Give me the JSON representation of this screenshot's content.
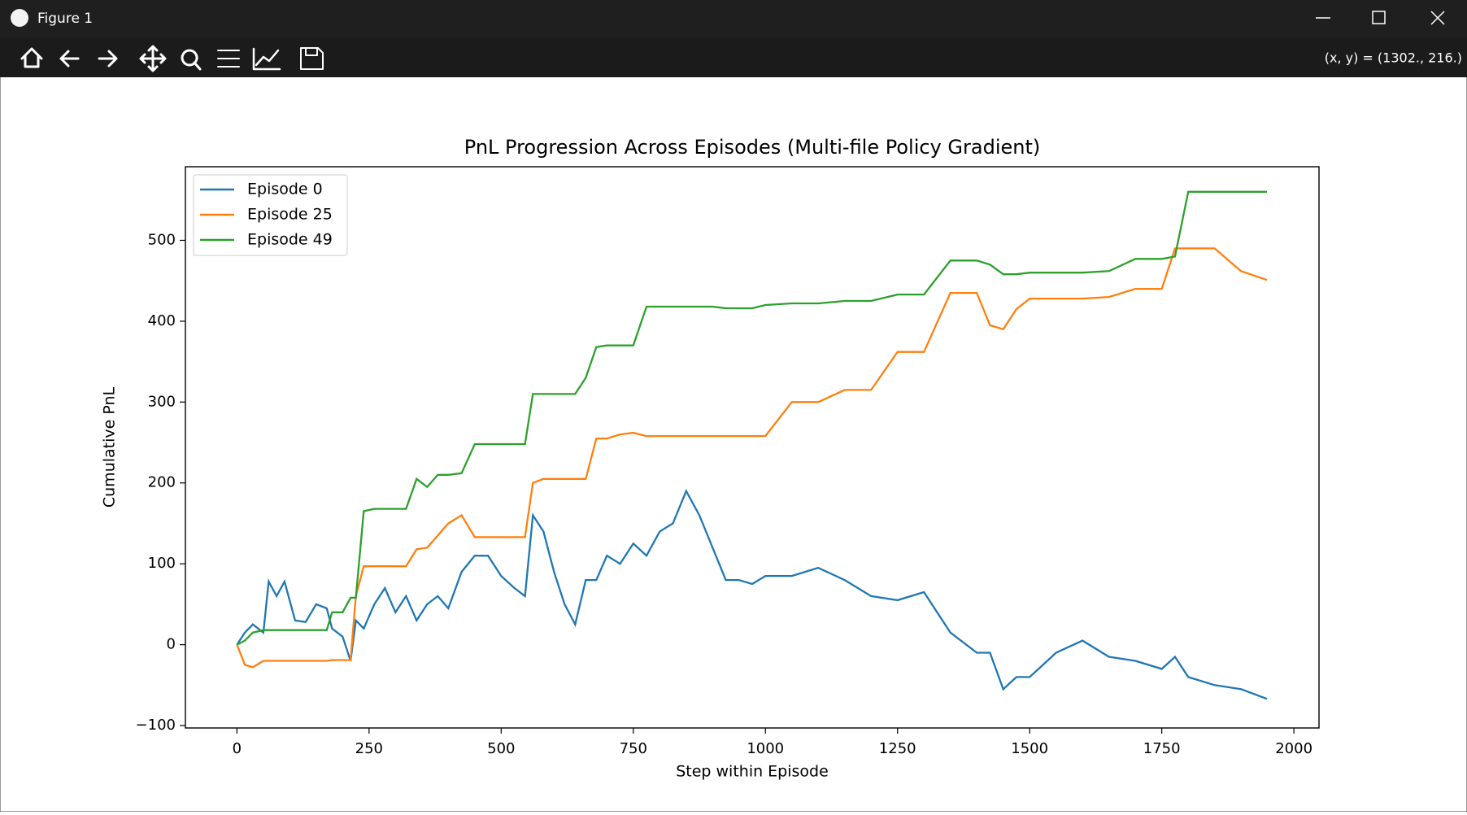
{
  "window": {
    "title": "Figure 1",
    "coordinates": "(x, y) = (1302., 216.)"
  },
  "chart_data": {
    "type": "line",
    "title": "PnL Progression Across Episodes (Multi-file Policy Gradient)",
    "x_label": "Step within Episode",
    "y_label": "Cumulative PnL",
    "x": [
      0,
      15,
      30,
      50,
      60,
      75,
      90,
      110,
      130,
      150,
      170,
      180,
      200,
      215,
      225,
      240,
      260,
      280,
      300,
      320,
      340,
      360,
      380,
      400,
      425,
      450,
      475,
      500,
      525,
      545,
      560,
      580,
      600,
      620,
      640,
      660,
      680,
      700,
      725,
      750,
      775,
      800,
      825,
      850,
      875,
      900,
      925,
      950,
      975,
      1000,
      1050,
      1100,
      1150,
      1200,
      1250,
      1300,
      1350,
      1400,
      1425,
      1450,
      1475,
      1500,
      1550,
      1600,
      1650,
      1700,
      1750,
      1775,
      1800,
      1850,
      1900,
      1949
    ],
    "series": [
      {
        "name": "Episode 0",
        "color": "#1f77b4",
        "values": [
          0,
          15,
          25,
          15,
          78,
          60,
          78,
          30,
          28,
          50,
          45,
          20,
          10,
          -20,
          30,
          20,
          50,
          70,
          40,
          60,
          30,
          50,
          60,
          45,
          90,
          110,
          110,
          85,
          70,
          60,
          160,
          140,
          90,
          50,
          25,
          80,
          80,
          110,
          100,
          125,
          110,
          140,
          150,
          190,
          160,
          120,
          80,
          80,
          75,
          85,
          85,
          95,
          80,
          60,
          55,
          65,
          15,
          -10,
          -10,
          -55,
          -40,
          -40,
          -10,
          5,
          -15,
          -20,
          -30,
          -15,
          -40,
          -50,
          -55,
          -67
        ]
      },
      {
        "name": "Episode 25",
        "color": "#ff7f0e",
        "values": [
          0,
          -25,
          -28,
          -20,
          -20,
          -20,
          -20,
          -20,
          -20,
          -20,
          -20,
          -19,
          -19,
          -19,
          60,
          97,
          97,
          97,
          97,
          97,
          118,
          120,
          135,
          150,
          160,
          133,
          133,
          133,
          133,
          133,
          200,
          205,
          205,
          205,
          205,
          205,
          255,
          255,
          260,
          262,
          258,
          258,
          258,
          258,
          258,
          258,
          258,
          258,
          258,
          258,
          300,
          300,
          315,
          315,
          362,
          362,
          435,
          435,
          395,
          390,
          415,
          428,
          428,
          428,
          430,
          440,
          440,
          490,
          490,
          490,
          462,
          451
        ]
      },
      {
        "name": "Episode 49",
        "color": "#2ca02c",
        "values": [
          0,
          5,
          15,
          18,
          18,
          18,
          18,
          18,
          18,
          18,
          18,
          40,
          40,
          58,
          58,
          165,
          168,
          168,
          168,
          168,
          205,
          195,
          210,
          210,
          212,
          248,
          248,
          248,
          248,
          248,
          310,
          310,
          310,
          310,
          310,
          330,
          368,
          370,
          370,
          370,
          418,
          418,
          418,
          418,
          418,
          418,
          416,
          416,
          416,
          420,
          422,
          422,
          425,
          425,
          433,
          433,
          475,
          475,
          470,
          458,
          458,
          460,
          460,
          460,
          462,
          477,
          477,
          480,
          560,
          560,
          560,
          560
        ]
      }
    ],
    "xlim": [
      -97.5,
      2047.5
    ],
    "xticks": [
      0,
      250,
      500,
      750,
      1000,
      1250,
      1500,
      1750,
      2000
    ],
    "ylim": [
      -103,
      591
    ],
    "yticks": [
      {
        "value": -100,
        "label": "−100"
      },
      0,
      100,
      200,
      300,
      400,
      500
    ],
    "legend": "upper left"
  }
}
